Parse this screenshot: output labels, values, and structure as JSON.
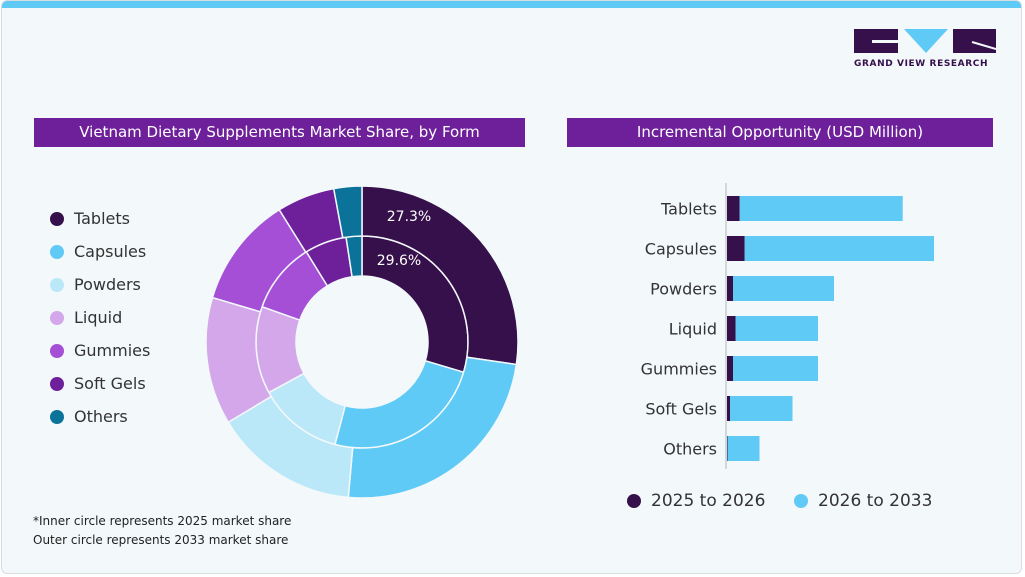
{
  "brand": {
    "name": "GRAND VIEW RESEARCH"
  },
  "colors": {
    "Tablets": "#36104a",
    "Capsules": "#5ecaf5",
    "Powders": "#bbe8f9",
    "Liquid": "#d3a7ea",
    "Gummies": "#a44fd6",
    "Soft Gels": "#6e1f9a",
    "Others": "#0b7399",
    "header": "#6e1f9a",
    "accent": "#5ecaf5"
  },
  "left_header": "Vietnam Dietary Supplements Market Share, by Form",
  "right_header": "Incremental Opportunity (USD Million)",
  "notes": [
    "*Inner circle represents 2025 market share",
    "Outer circle represents 2033 market share"
  ],
  "chart_data": [
    {
      "type": "pie",
      "title": "Vietnam Dietary Supplements Market Share, by Form",
      "categories": [
        "Tablets",
        "Capsules",
        "Powders",
        "Liquid",
        "Gummies",
        "Soft Gels",
        "Others"
      ],
      "series": [
        {
          "name": "2025",
          "ring": "inner",
          "values": [
            29.6,
            24.5,
            13.0,
            13.3,
            10.8,
            6.4,
            2.4
          ]
        },
        {
          "name": "2033",
          "ring": "outer",
          "values": [
            27.3,
            24.1,
            15.0,
            13.2,
            11.5,
            6.0,
            2.9
          ]
        }
      ],
      "data_labels": {
        "inner": "29.6%",
        "outer": "27.3%"
      },
      "legend": "left"
    },
    {
      "type": "bar",
      "orientation": "horizontal",
      "stacked": true,
      "title": "Incremental Opportunity (USD Million)",
      "categories": [
        "Tablets",
        "Capsules",
        "Powders",
        "Liquid",
        "Gummies",
        "Soft Gels",
        "Others"
      ],
      "series": [
        {
          "name": "2025 to 2026",
          "color": "#36104a",
          "values": [
            12.7,
            17.7,
            6,
            8.5,
            6,
            3,
            0.5
          ]
        },
        {
          "name": "2026 to 2033",
          "color": "#5ecaf5",
          "values": [
            163,
            189.3,
            101,
            82.5,
            85,
            62.5,
            32
          ]
        }
      ],
      "legend": "bottom",
      "grid": false
    }
  ]
}
